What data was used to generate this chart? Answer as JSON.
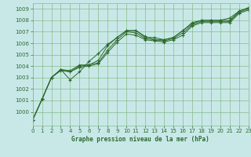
{
  "bg_color": "#c8e8e8",
  "grid_color": "#88bb88",
  "line_color": "#2d6a2d",
  "xlabel": "Graphe pression niveau de la mer (hPa)",
  "ylim": [
    998.8,
    1009.5
  ],
  "xlim": [
    0,
    23
  ],
  "yticks": [
    1000,
    1001,
    1002,
    1003,
    1004,
    1005,
    1006,
    1007,
    1008,
    1009
  ],
  "xticks": [
    0,
    1,
    2,
    3,
    4,
    5,
    6,
    7,
    8,
    9,
    10,
    11,
    12,
    13,
    14,
    15,
    16,
    17,
    18,
    19,
    20,
    21,
    22,
    23
  ],
  "series": [
    [
      999.3,
      1001.1,
      1003.0,
      1003.7,
      1003.6,
      1004.1,
      1004.1,
      1004.5,
      1005.8,
      1006.5,
      1007.1,
      1007.1,
      1006.5,
      1006.5,
      1006.3,
      1006.5,
      1007.1,
      1007.8,
      1008.0,
      1008.0,
      1008.0,
      1008.0,
      1008.8,
      1009.1
    ],
    [
      999.3,
      1001.1,
      1003.0,
      1003.7,
      1003.5,
      1004.0,
      1004.1,
      1004.3,
      1005.4,
      1006.3,
      1007.0,
      1006.9,
      1006.4,
      1006.3,
      1006.2,
      1006.4,
      1006.9,
      1007.6,
      1007.9,
      1007.9,
      1007.9,
      1007.9,
      1008.7,
      1009.0
    ],
    [
      999.3,
      1001.1,
      1003.0,
      1003.6,
      1003.5,
      1003.9,
      1004.0,
      1004.2,
      1005.2,
      1006.1,
      1006.8,
      1006.7,
      1006.3,
      1006.2,
      1006.1,
      1006.3,
      1006.7,
      1007.5,
      1007.8,
      1007.8,
      1007.8,
      1007.8,
      1008.6,
      1008.9
    ],
    [
      999.3,
      1001.1,
      1003.0,
      1003.7,
      1002.8,
      1003.5,
      1004.4,
      1005.1,
      1005.9,
      1006.5,
      1007.1,
      1007.1,
      1006.6,
      1006.3,
      1006.3,
      1006.5,
      1007.1,
      1007.7,
      1008.0,
      1008.0,
      1008.0,
      1008.2,
      1008.8,
      1009.1
    ]
  ]
}
